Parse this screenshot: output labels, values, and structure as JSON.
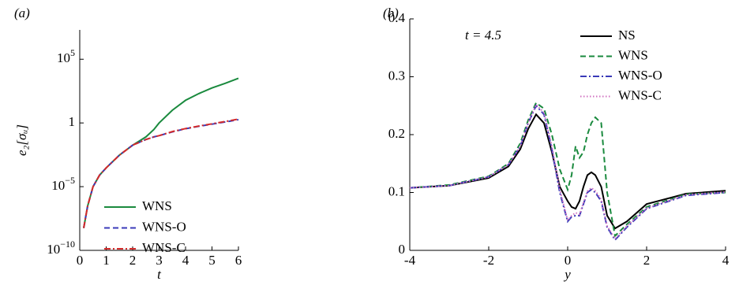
{
  "chart_data": [
    {
      "type": "line",
      "panel": "(a)",
      "ylabel": "e₂[σᵤ]",
      "xlabel": "t",
      "log_y": true,
      "legend": "lower right",
      "xlim": [
        0,
        6
      ],
      "xticks": [
        0,
        1,
        2,
        3,
        4,
        5,
        6
      ],
      "ylim": [
        1e-10,
        20000000
      ],
      "yticks": [
        {
          "value": 1e-10,
          "label": "10",
          "exponent": "−10"
        },
        {
          "value": 1e-05,
          "label": "10",
          "exponent": "−5"
        },
        1,
        {
          "value": 100000,
          "label": "10",
          "exponent": "5"
        }
      ],
      "x": [
        0.15,
        0.3,
        0.5,
        0.75,
        1,
        1.5,
        2,
        2.5,
        2.8,
        3,
        3.5,
        4,
        4.5,
        5,
        5.5,
        6
      ],
      "series": [
        {
          "name": "WNS",
          "color": "#1a8a3e",
          "dash": "solid",
          "values": [
            5.6e-09,
            3e-07,
            1e-05,
            8e-05,
            0.0003,
            0.003,
            0.018,
            0.08,
            0.3,
            1,
            10,
            60,
            200,
            560,
            1300,
            3200
          ]
        },
        {
          "name": "WNS-O",
          "color": "#3a3ab8",
          "dash": "dashed",
          "values": [
            5.6e-09,
            3e-07,
            1e-05,
            8e-05,
            0.0003,
            0.003,
            0.018,
            0.05,
            0.08,
            0.1,
            0.2,
            0.35,
            0.55,
            0.8,
            1.2,
            1.8
          ]
        },
        {
          "name": "WNS-C",
          "color": "#d42a2a",
          "dash": "dashdot",
          "values": [
            5.6e-09,
            3e-07,
            1e-05,
            8e-05,
            0.0003,
            0.003,
            0.018,
            0.05,
            0.08,
            0.1,
            0.21,
            0.36,
            0.57,
            0.85,
            1.3,
            2.0
          ]
        }
      ]
    },
    {
      "type": "line",
      "panel": "(b)",
      "xlabel": "y",
      "annotation": "t = 4.5",
      "log_y": false,
      "legend": "upper right",
      "xlim": [
        -4,
        4
      ],
      "xticks": [
        -4,
        -2,
        0,
        2,
        4
      ],
      "ylim": [
        0,
        0.4
      ],
      "yticks": [
        0,
        0.1,
        0.2,
        0.3,
        0.4
      ],
      "x": [
        -4,
        -3,
        -2,
        -1.5,
        -1.2,
        -1,
        -0.8,
        -0.6,
        -0.4,
        -0.2,
        0,
        0.1,
        0.2,
        0.3,
        0.4,
        0.5,
        0.6,
        0.7,
        0.85,
        1,
        1.2,
        1.5,
        2,
        3,
        4
      ],
      "series": [
        {
          "name": "NS",
          "color": "#000000",
          "dash": "solid",
          "values": [
            0.108,
            0.112,
            0.125,
            0.145,
            0.175,
            0.21,
            0.235,
            0.22,
            0.17,
            0.11,
            0.085,
            0.075,
            0.072,
            0.085,
            0.11,
            0.13,
            0.135,
            0.13,
            0.11,
            0.06,
            0.038,
            0.05,
            0.08,
            0.098,
            0.103
          ]
        },
        {
          "name": "WNS",
          "color": "#1a8a3e",
          "dash": "dashed",
          "values": [
            0.108,
            0.113,
            0.128,
            0.15,
            0.185,
            0.225,
            0.255,
            0.245,
            0.2,
            0.14,
            0.105,
            0.13,
            0.18,
            0.16,
            0.17,
            0.2,
            0.22,
            0.23,
            0.22,
            0.1,
            0.025,
            0.045,
            0.075,
            0.097,
            0.1
          ]
        },
        {
          "name": "WNS-O",
          "color": "#3a3ab8",
          "dash": "dashdot",
          "values": [
            0.108,
            0.112,
            0.127,
            0.148,
            0.18,
            0.22,
            0.25,
            0.235,
            0.175,
            0.1,
            0.05,
            0.058,
            0.06,
            0.06,
            0.08,
            0.1,
            0.105,
            0.1,
            0.085,
            0.04,
            0.018,
            0.04,
            0.072,
            0.095,
            0.1
          ]
        },
        {
          "name": "WNS-C",
          "color": "#d070c0",
          "dash": "dotted",
          "values": [
            0.108,
            0.112,
            0.127,
            0.148,
            0.18,
            0.22,
            0.252,
            0.238,
            0.18,
            0.105,
            0.052,
            0.06,
            0.065,
            0.062,
            0.082,
            0.102,
            0.108,
            0.103,
            0.088,
            0.042,
            0.02,
            0.042,
            0.073,
            0.096,
            0.101
          ]
        }
      ]
    }
  ]
}
